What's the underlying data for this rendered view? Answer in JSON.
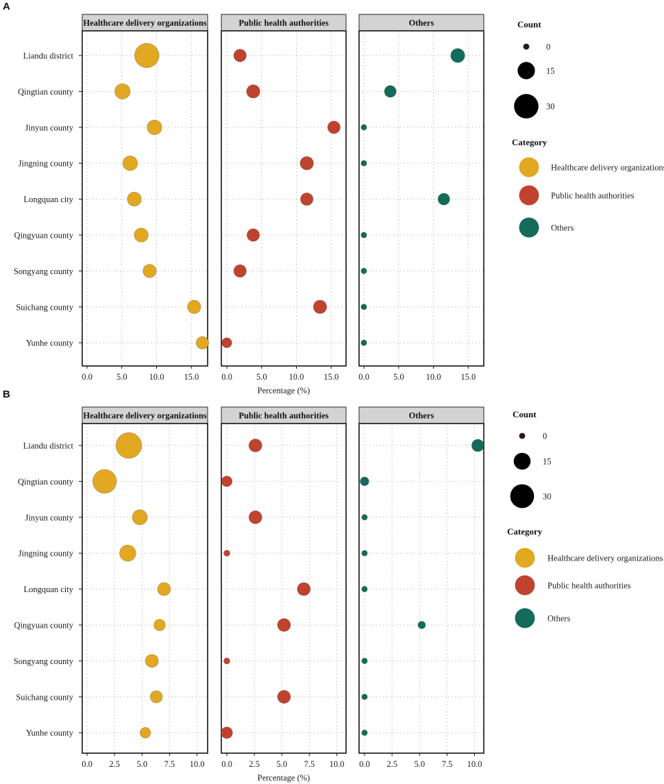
{
  "colors": {
    "Healthcare delivery organizations": "#E2A822",
    "Public health authorities": "#C0432F",
    "Others": "#146B5A",
    "grid": "#bdbdbd",
    "strip": "#d3d3d3"
  },
  "chart_data": [
    {
      "panel": "A",
      "type": "scatter",
      "title": "",
      "xlabel": "Percentage (%)",
      "ylabel": "",
      "xlim": [
        -0.5,
        17.0
      ],
      "xticks": [
        "0.0",
        "5.0",
        "10.0",
        "15.0"
      ],
      "xtick_values": [
        0,
        5,
        10,
        15
      ],
      "categories": [
        "Liandu district",
        "Qingtian county",
        "Jinyun county",
        "Jingning  county",
        "Longquan city",
        "Qingyuan county",
        "Songyang county",
        "Suichang county",
        "Yunhe county"
      ],
      "facets": [
        "Healthcare delivery organizations",
        "Public health authorities",
        "Others"
      ],
      "series": [
        {
          "name": "Healthcare delivery organizations",
          "values": [
            8.6,
            5.1,
            9.7,
            6.2,
            6.8,
            7.8,
            9.0,
            15.4,
            16.6
          ],
          "counts": [
            30,
            12,
            11,
            11,
            10,
            10,
            9,
            9,
            8
          ]
        },
        {
          "name": "Public health authorities",
          "values": [
            1.9,
            3.8,
            15.4,
            11.5,
            11.5,
            3.8,
            1.9,
            13.4,
            0.0
          ],
          "counts": [
            8,
            9,
            8,
            9,
            8,
            8,
            8,
            9,
            5
          ]
        },
        {
          "name": "Others",
          "values": [
            13.5,
            3.8,
            0.0,
            0.0,
            11.5,
            0.0,
            0.0,
            0.0,
            0.0
          ],
          "counts": [
            10,
            7,
            0,
            0,
            7,
            0,
            0,
            0,
            0
          ]
        }
      ],
      "legend": {
        "count_title": "Count",
        "count_values": [
          "0",
          "15",
          "30"
        ],
        "category_title": "Category",
        "category_items": [
          "Healthcare delivery organizations",
          "Public health authorities",
          "Others"
        ]
      }
    },
    {
      "panel": "B",
      "type": "scatter",
      "title": "",
      "xlabel": "Percentage (%)",
      "ylabel": "",
      "xlim": [
        -0.5,
        11.0
      ],
      "xticks": [
        "0.0",
        "2.5",
        "5.0",
        "7.5",
        "10.0"
      ],
      "xtick_values": [
        0,
        2.5,
        5,
        7.5,
        10
      ],
      "categories": [
        "Liandu district",
        "Qingtian county",
        "Jinyun county",
        "Jingning  county",
        "Longquan city",
        "Qingyuan county",
        "Songyang county",
        "Suichang county",
        "Yunhe county"
      ],
      "facets": [
        "Healthcare delivery organizations",
        "Public health authorities",
        "Others"
      ],
      "series": [
        {
          "name": "Healthcare delivery organizations",
          "values": [
            3.8,
            1.6,
            4.8,
            3.7,
            7.0,
            6.6,
            5.9,
            6.3,
            5.3
          ],
          "counts": [
            35,
            30,
            12,
            14,
            9,
            7,
            9,
            8,
            6
          ]
        },
        {
          "name": "Public health authorities",
          "values": [
            2.6,
            0.0,
            2.6,
            0.0,
            7.0,
            5.2,
            0.0,
            5.2,
            0.0
          ],
          "counts": [
            9,
            6,
            9,
            2,
            9,
            9,
            2,
            9,
            7
          ]
        },
        {
          "name": "Others",
          "values": [
            10.3,
            0.0,
            0.0,
            0.0,
            0.0,
            5.2,
            0.0,
            0.0,
            0.0
          ],
          "counts": [
            8,
            4,
            0,
            0,
            0,
            3,
            0,
            0,
            0
          ]
        }
      ],
      "legend": {
        "count_title": "Count",
        "count_values": [
          "0",
          "15",
          "30"
        ],
        "category_title": "Category",
        "category_items": [
          "Healthcare delivery organizations",
          "Public health authorities",
          "Others"
        ]
      }
    }
  ]
}
